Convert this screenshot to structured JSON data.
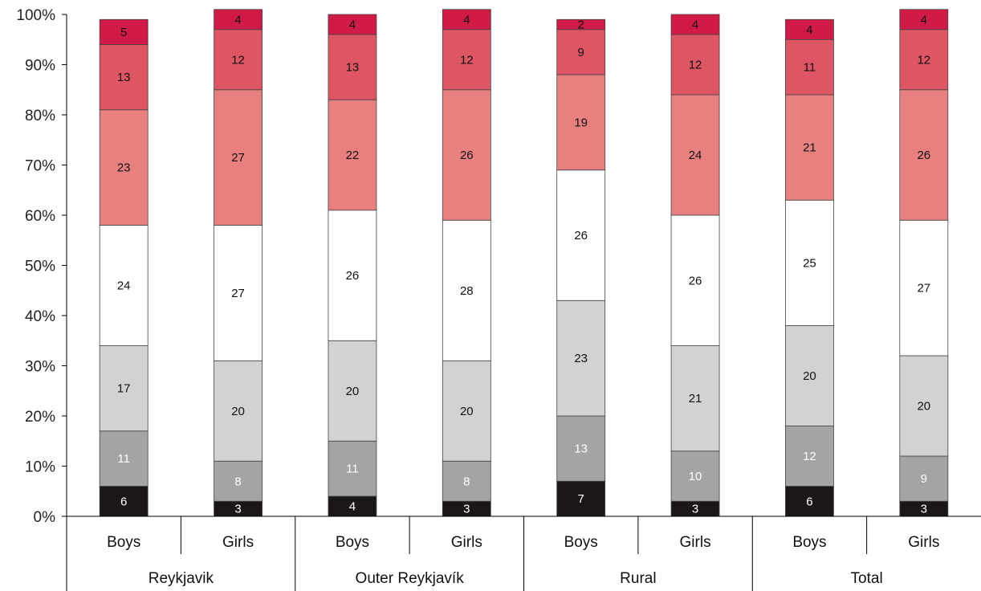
{
  "chart_data": {
    "type": "bar",
    "stacked": true,
    "percent": true,
    "title": "",
    "xlabel": "",
    "ylabel": "",
    "ylim": [
      0,
      100
    ],
    "y_ticks": [
      "0%",
      "10%",
      "20%",
      "30%",
      "40%",
      "50%",
      "60%",
      "70%",
      "80%",
      "90%",
      "100%"
    ],
    "grid": false,
    "legend": "none",
    "groups": [
      "Reykjavik",
      "Outer Reykjavík",
      "Rural",
      "Total"
    ],
    "categories": [
      "Boys",
      "Girls",
      "Boys",
      "Girls",
      "Boys",
      "Girls",
      "Boys",
      "Girls"
    ],
    "series": [
      {
        "color": "#1b1718",
        "label_color": "#ffffff",
        "values": [
          6,
          3,
          4,
          3,
          7,
          3,
          6,
          3
        ]
      },
      {
        "color": "#a3a4a6",
        "label_color": "#ffffff",
        "values": [
          11,
          8,
          11,
          8,
          13,
          10,
          12,
          9
        ]
      },
      {
        "color": "#d1d2d4",
        "label_color": "#111111",
        "values": [
          17,
          20,
          20,
          20,
          23,
          21,
          20,
          20
        ]
      },
      {
        "color": "#ffffff",
        "label_color": "#111111",
        "values": [
          24,
          27,
          26,
          28,
          26,
          26,
          25,
          27
        ]
      },
      {
        "color": "#e88080",
        "label_color": "#111111",
        "values": [
          23,
          27,
          22,
          26,
          19,
          24,
          21,
          26
        ]
      },
      {
        "color": "#de5563",
        "label_color": "#111111",
        "values": [
          13,
          12,
          13,
          12,
          9,
          12,
          11,
          12
        ]
      },
      {
        "color": "#cf1b45",
        "label_color": "#111111",
        "values": [
          5,
          4,
          4,
          4,
          2,
          4,
          4,
          4
        ]
      }
    ]
  }
}
